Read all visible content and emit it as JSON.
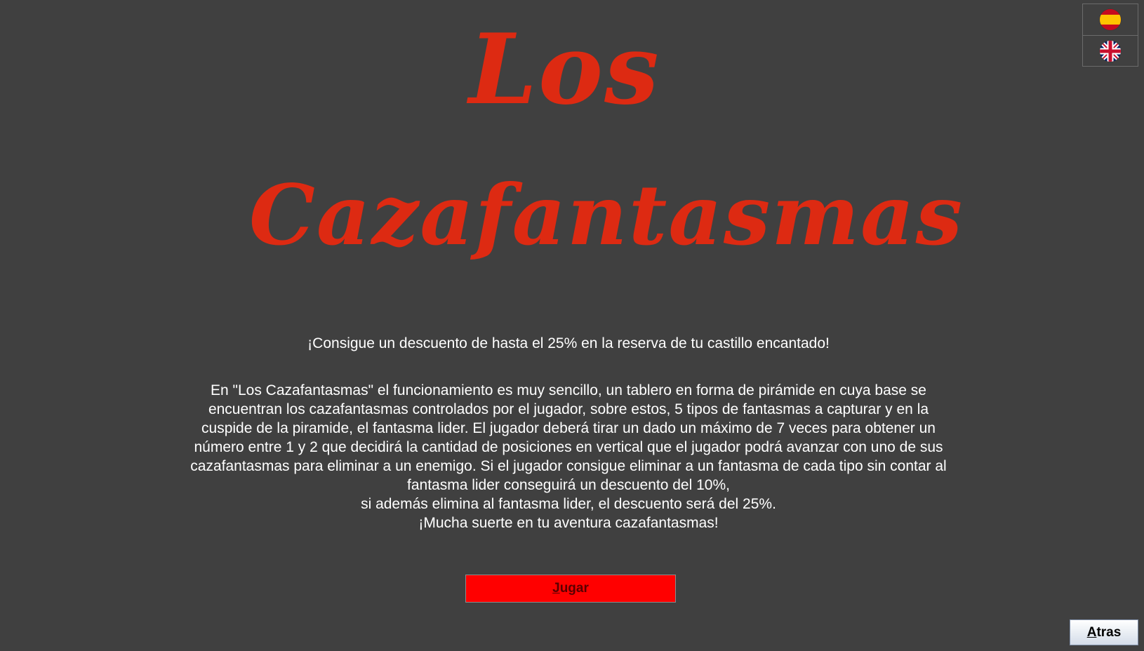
{
  "title": {
    "line1": "Los",
    "line2": "Cazafantasmas"
  },
  "promo_text": "¡Consigue un descuento de hasta el 25% en la reserva de tu castillo encantado!",
  "description": [
    "En \"Los Cazafantasmas\" el funcionamiento es muy sencillo, un tablero en forma de pirámide en cuya base se encuentran los cazafantasmas controlados por el jugador, sobre estos, 5 tipos de fantasmas a capturar y en la cuspide de la piramide, el fantasma lider. El jugador deberá tirar un dado un máximo de 7 veces para obtener un número entre 1 y 2 que decidirá la cantidad de posiciones en vertical que el jugador podrá avanzar con uno de sus cazafantasmas para eliminar a un enemigo. Si el jugador consigue eliminar a un fantasma de cada tipo sin contar al fantasma lider conseguirá un descuento del 10%,",
    "si además elimina al fantasma lider, el descuento será del 25%.",
    "¡Mucha suerte en tu aventura cazafantasmas!"
  ],
  "buttons": {
    "play": {
      "mnemonic": "J",
      "rest": "ugar"
    },
    "back": {
      "mnemonic": "A",
      "rest": "tras"
    }
  },
  "language": {
    "options": [
      {
        "icon": "spain-flag-icon"
      },
      {
        "icon": "uk-flag-icon"
      }
    ]
  },
  "colors": {
    "background": "#404040",
    "title": "#dd2a12",
    "play_button": "#ff0000"
  }
}
